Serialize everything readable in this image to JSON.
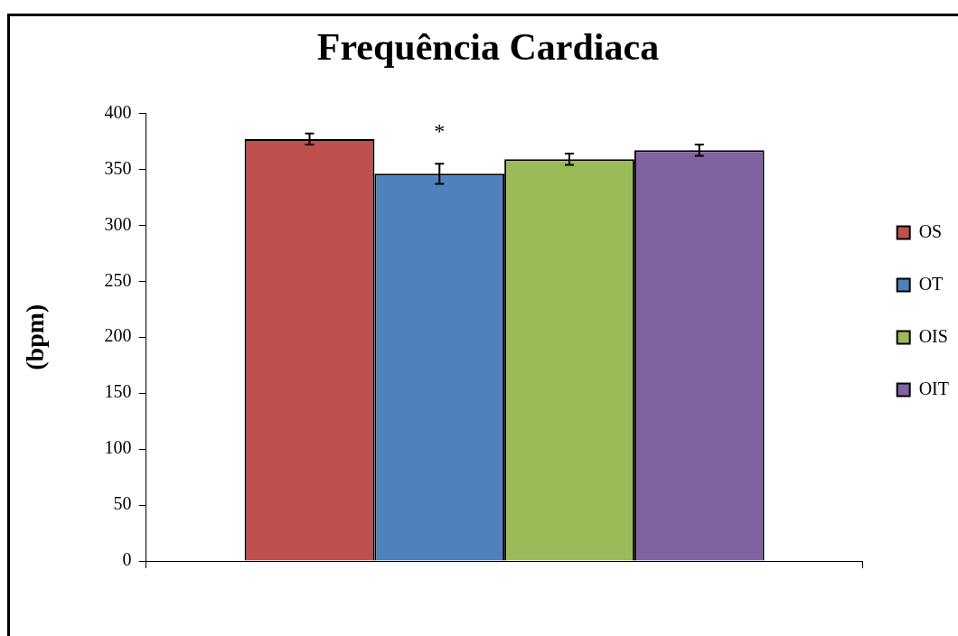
{
  "chart_data": {
    "type": "bar",
    "title": "Frequência Cardiaca",
    "ylabel": "(bpm)",
    "categories": [
      null
    ],
    "series": [
      {
        "name": "OS",
        "color": "#c0504d",
        "values": [
          377
        ],
        "errors": [
          5
        ]
      },
      {
        "name": "OT",
        "color": "#4f81bd",
        "values": [
          346
        ],
        "errors": [
          9
        ]
      },
      {
        "name": "OIS",
        "color": "#9bbb59",
        "values": [
          359
        ],
        "errors": [
          5
        ]
      },
      {
        "name": "OIT",
        "color": "#8064a2",
        "values": [
          367
        ],
        "errors": [
          5
        ]
      }
    ],
    "ylim": [
      0,
      400
    ],
    "yticks": [
      0,
      50,
      100,
      150,
      200,
      250,
      300,
      350,
      400
    ],
    "grid": false,
    "legend": "right",
    "annotations": [
      "*"
    ]
  }
}
